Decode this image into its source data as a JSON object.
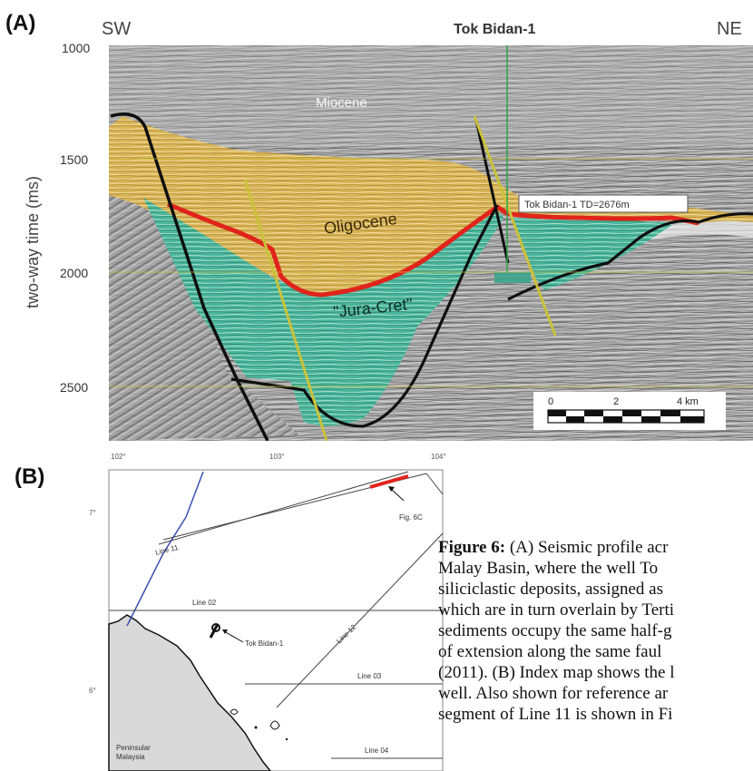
{
  "panel_a": {
    "label": "(A)",
    "sw": "SW",
    "ne": "NE",
    "well_name": "Tok Bidan-1",
    "y_axis_title": "two-way time (ms)",
    "y_ticks": [
      "1000",
      "1500",
      "2000",
      "2500"
    ],
    "units": {
      "miocene": "Miocene",
      "oligocene": "Oligocene",
      "jura_cret": "\"Jura-Cret\""
    },
    "well_td_label": "Tok Bidan-1 TD=2676m",
    "scale_ticks": [
      "0",
      "2",
      "4 km"
    ],
    "colors": {
      "oligocene": "#d9b24a",
      "jura_cret": "#3fb59a",
      "unconformity": "#e0241b",
      "fault": "#c9c23a",
      "well": "#2fa34a"
    }
  },
  "panel_b": {
    "label": "(B)",
    "lon_ticks": [
      "102°",
      "103°",
      "104°"
    ],
    "lat_ticks": [
      "7°",
      "6°"
    ],
    "lines": [
      "Line 11",
      "Line 02",
      "Line 12",
      "Line 03",
      "Line 04"
    ],
    "fig_ref": "Fig. 6C",
    "well": "Tok Bidan-1",
    "land": "Peninsular Malaysia",
    "colors": {
      "segment": "#e0241b",
      "coast": "#3a4fb5",
      "land": "#d9d9d9"
    }
  },
  "caption": {
    "figure_label": "Figure 6:",
    "lines": [
      " (A) Seismic profile acr",
      "Malay Basin, where the well To",
      "siliciclastic deposits, assigned as",
      "which are in turn overlain by Terti",
      "sediments occupy the same half-g",
      "of extension along the same faul",
      "(2011). (B) Index map shows the l",
      "well. Also shown for reference ar",
      "segment of Line 11 is shown in Fi"
    ]
  }
}
